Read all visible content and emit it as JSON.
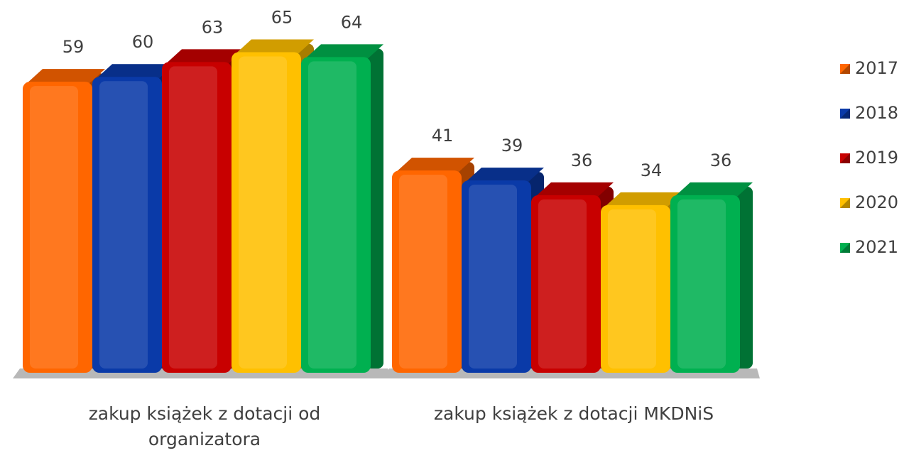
{
  "chart_data": {
    "type": "bar3d",
    "categories": [
      "zakup książek z dotacji od organizatora",
      "zakup książek z dotacji MKDNiS"
    ],
    "series": [
      {
        "name": "2017",
        "color": "#ff6600",
        "values": [
          59,
          41
        ]
      },
      {
        "name": "2018",
        "color": "#0a3aa8",
        "values": [
          60,
          39
        ]
      },
      {
        "name": "2019",
        "color": "#c80000",
        "values": [
          63,
          36
        ]
      },
      {
        "name": "2020",
        "color": "#ffc000",
        "values": [
          65,
          34
        ]
      },
      {
        "name": "2021",
        "color": "#00b050",
        "values": [
          64,
          36
        ]
      }
    ],
    "ylim": [
      0,
      75
    ],
    "legend": "right"
  }
}
